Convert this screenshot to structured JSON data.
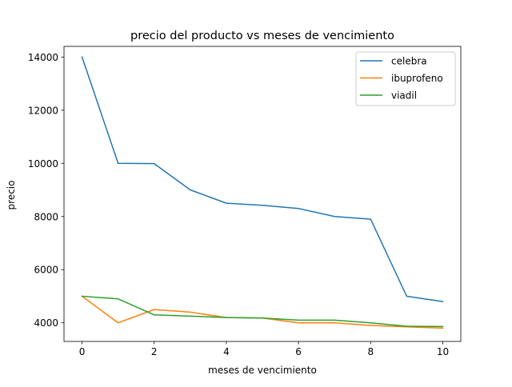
{
  "chart_data": {
    "type": "line",
    "title": "precio del producto vs meses de vencimiento",
    "xlabel": "meses de vencimiento",
    "ylabel": "precio",
    "x": [
      0,
      1,
      2,
      3,
      4,
      5,
      6,
      7,
      8,
      9,
      10
    ],
    "xlim": [
      -0.5,
      10.5
    ],
    "ylim": [
      3300,
      14400
    ],
    "xticks": [
      0,
      2,
      4,
      6,
      8,
      10
    ],
    "yticks": [
      4000,
      6000,
      8000,
      10000,
      12000,
      14000
    ],
    "grid": false,
    "legend_position": "top-right",
    "series": [
      {
        "name": "celebra",
        "color": "#1f77b4",
        "values": [
          14000,
          10000,
          9990,
          9000,
          8500,
          8420,
          8300,
          8000,
          7900,
          5000,
          4800
        ]
      },
      {
        "name": "ibuprofeno",
        "color": "#ff7f0e",
        "values": [
          5000,
          4000,
          4500,
          4400,
          4200,
          4180,
          4000,
          4000,
          3900,
          3850,
          3800
        ]
      },
      {
        "name": "viadil",
        "color": "#2ca02c",
        "values": [
          5000,
          4900,
          4300,
          4250,
          4200,
          4180,
          4100,
          4100,
          4000,
          3870,
          3860
        ]
      }
    ]
  }
}
